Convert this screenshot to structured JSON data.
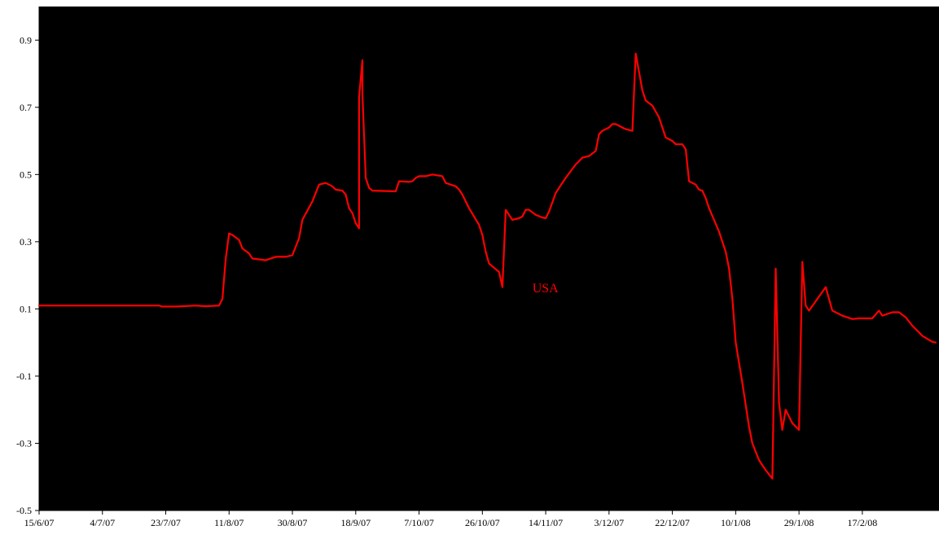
{
  "chart_data": {
    "type": "line",
    "title": "",
    "xlabel": "",
    "ylabel": "",
    "ylim": [
      -0.5,
      1.0
    ],
    "y_ticks": [
      -0.5,
      -0.3,
      -0.1,
      0.1,
      0.3,
      0.5,
      0.7,
      0.9
    ],
    "y_tick_labels": [
      "-0.5",
      "-0.3",
      "-0.1",
      "0.1",
      "0.3",
      "0.5",
      "0.7",
      "0.9"
    ],
    "x_range": [
      "15/6/07",
      "11/3/08"
    ],
    "x_ticks": [
      "15/6/07",
      "4/7/07",
      "23/7/07",
      "11/8/07",
      "30/8/07",
      "18/9/07",
      "7/10/07",
      "26/10/07",
      "14/11/07",
      "3/12/07",
      "22/12/07",
      "10/1/08",
      "29/1/08",
      "17/2/08"
    ],
    "grid": false,
    "plot_background": "#000000",
    "page_background": "#ffffff",
    "legend": "none",
    "series": [
      {
        "name": "USA",
        "color": "#ff0000",
        "points": [
          [
            "15/6/07",
            0.11
          ],
          [
            "21/7/07",
            0.11
          ],
          [
            "22/7/07",
            0.107
          ],
          [
            "26/7/07",
            0.107
          ],
          [
            "1/8/07",
            0.11
          ],
          [
            "4/8/07",
            0.108
          ],
          [
            "8/8/07",
            0.11
          ],
          [
            "9/8/07",
            0.13
          ],
          [
            "10/8/07",
            0.25
          ],
          [
            "11/8/07",
            0.325
          ],
          [
            "12/8/07",
            0.32
          ],
          [
            "14/8/07",
            0.305
          ],
          [
            "15/8/07",
            0.28
          ],
          [
            "17/8/07",
            0.265
          ],
          [
            "18/8/07",
            0.25
          ],
          [
            "22/8/07",
            0.245
          ],
          [
            "25/8/07",
            0.255
          ],
          [
            "28/8/07",
            0.255
          ],
          [
            "30/8/07",
            0.26
          ],
          [
            "1/9/07",
            0.31
          ],
          [
            "2/9/07",
            0.365
          ],
          [
            "5/9/07",
            0.42
          ],
          [
            "7/9/07",
            0.47
          ],
          [
            "9/9/07",
            0.475
          ],
          [
            "11/9/07",
            0.465
          ],
          [
            "12/9/07",
            0.455
          ],
          [
            "14/9/07",
            0.452
          ],
          [
            "15/9/07",
            0.44
          ],
          [
            "16/9/07",
            0.4
          ],
          [
            "17/9/07",
            0.385
          ],
          [
            "18/9/07",
            0.355
          ],
          [
            "19/9/07",
            0.34
          ],
          [
            "19/9/07",
            0.73
          ],
          [
            "20/9/07",
            0.84
          ],
          [
            "20/9/07",
            0.74
          ],
          [
            "21/9/07",
            0.49
          ],
          [
            "22/9/07",
            0.46
          ],
          [
            "23/9/07",
            0.452
          ],
          [
            "30/9/07",
            0.45
          ],
          [
            "1/10/07",
            0.48
          ],
          [
            "4/10/07",
            0.478
          ],
          [
            "5/10/07",
            0.48
          ],
          [
            "6/10/07",
            0.49
          ],
          [
            "7/10/07",
            0.495
          ],
          [
            "9/10/07",
            0.495
          ],
          [
            "11/10/07",
            0.5
          ],
          [
            "14/10/07",
            0.495
          ],
          [
            "15/10/07",
            0.475
          ],
          [
            "18/10/07",
            0.465
          ],
          [
            "19/10/07",
            0.455
          ],
          [
            "20/10/07",
            0.44
          ],
          [
            "22/10/07",
            0.4
          ],
          [
            "25/10/07",
            0.35
          ],
          [
            "26/10/07",
            0.32
          ],
          [
            "27/10/07",
            0.27
          ],
          [
            "28/10/07",
            0.235
          ],
          [
            "31/10/07",
            0.21
          ],
          [
            "1/11/07",
            0.165
          ],
          [
            "2/11/07",
            0.395
          ],
          [
            "4/11/07",
            0.365
          ],
          [
            "6/11/07",
            0.37
          ],
          [
            "7/11/07",
            0.375
          ],
          [
            "8/11/07",
            0.395
          ],
          [
            "9/11/07",
            0.395
          ],
          [
            "11/11/07",
            0.38
          ],
          [
            "13/11/07",
            0.372
          ],
          [
            "14/11/07",
            0.37
          ],
          [
            "15/11/07",
            0.39
          ],
          [
            "17/11/07",
            0.445
          ],
          [
            "18/11/07",
            0.46
          ],
          [
            "20/11/07",
            0.49
          ],
          [
            "23/11/07",
            0.53
          ],
          [
            "25/11/07",
            0.55
          ],
          [
            "27/11/07",
            0.555
          ],
          [
            "29/11/07",
            0.57
          ],
          [
            "30/11/07",
            0.62
          ],
          [
            "1/12/07",
            0.63
          ],
          [
            "3/12/07",
            0.64
          ],
          [
            "4/12/07",
            0.65
          ],
          [
            "5/12/07",
            0.65
          ],
          [
            "7/12/07",
            0.64
          ],
          [
            "8/12/07",
            0.635
          ],
          [
            "10/12/07",
            0.63
          ],
          [
            "11/12/07",
            0.86
          ],
          [
            "13/12/07",
            0.75
          ],
          [
            "14/12/07",
            0.72
          ],
          [
            "16/12/07",
            0.705
          ],
          [
            "18/12/07",
            0.67
          ],
          [
            "20/12/07",
            0.61
          ],
          [
            "22/12/07",
            0.6
          ],
          [
            "23/12/07",
            0.59
          ],
          [
            "25/12/07",
            0.59
          ],
          [
            "26/12/07",
            0.575
          ],
          [
            "27/12/07",
            0.48
          ],
          [
            "29/12/07",
            0.47
          ],
          [
            "30/12/07",
            0.455
          ],
          [
            "31/12/07",
            0.452
          ],
          [
            "1/1/08",
            0.43
          ],
          [
            "2/1/08",
            0.4
          ],
          [
            "5/1/08",
            0.33
          ],
          [
            "7/1/08",
            0.27
          ],
          [
            "8/1/08",
            0.22
          ],
          [
            "9/1/08",
            0.13
          ],
          [
            "10/1/08",
            0.0
          ],
          [
            "12/1/08",
            -0.12
          ],
          [
            "14/1/08",
            -0.25
          ],
          [
            "15/1/08",
            -0.3
          ],
          [
            "17/1/08",
            -0.35
          ],
          [
            "19/1/08",
            -0.38
          ],
          [
            "21/1/08",
            -0.405
          ],
          [
            "22/1/08",
            0.22
          ],
          [
            "23/1/08",
            -0.18
          ],
          [
            "24/1/08",
            -0.26
          ],
          [
            "25/1/08",
            -0.2
          ],
          [
            "27/1/08",
            -0.24
          ],
          [
            "28/1/08",
            -0.25
          ],
          [
            "29/1/08",
            -0.26
          ],
          [
            "30/1/08",
            0.24
          ],
          [
            "31/1/08",
            0.11
          ],
          [
            "1/2/08",
            0.095
          ],
          [
            "6/2/08",
            0.165
          ],
          [
            "8/2/08",
            0.095
          ],
          [
            "11/2/08",
            0.08
          ],
          [
            "14/2/08",
            0.07
          ],
          [
            "16/2/08",
            0.072
          ],
          [
            "18/2/08",
            0.072
          ],
          [
            "20/2/08",
            0.072
          ],
          [
            "22/2/08",
            0.095
          ],
          [
            "23/2/08",
            0.08
          ],
          [
            "26/2/08",
            0.09
          ],
          [
            "28/2/08",
            0.09
          ],
          [
            "1/3/08",
            0.075
          ],
          [
            "3/3/08",
            0.05
          ],
          [
            "6/3/08",
            0.02
          ],
          [
            "8/3/08",
            0.008
          ],
          [
            "9/3/08",
            0.002
          ],
          [
            "10/3/08",
            0.0
          ]
        ]
      }
    ],
    "annotations": [
      {
        "text": "USA",
        "x": "10/11/07",
        "y": 0.15,
        "color": "#ff0000"
      }
    ]
  }
}
